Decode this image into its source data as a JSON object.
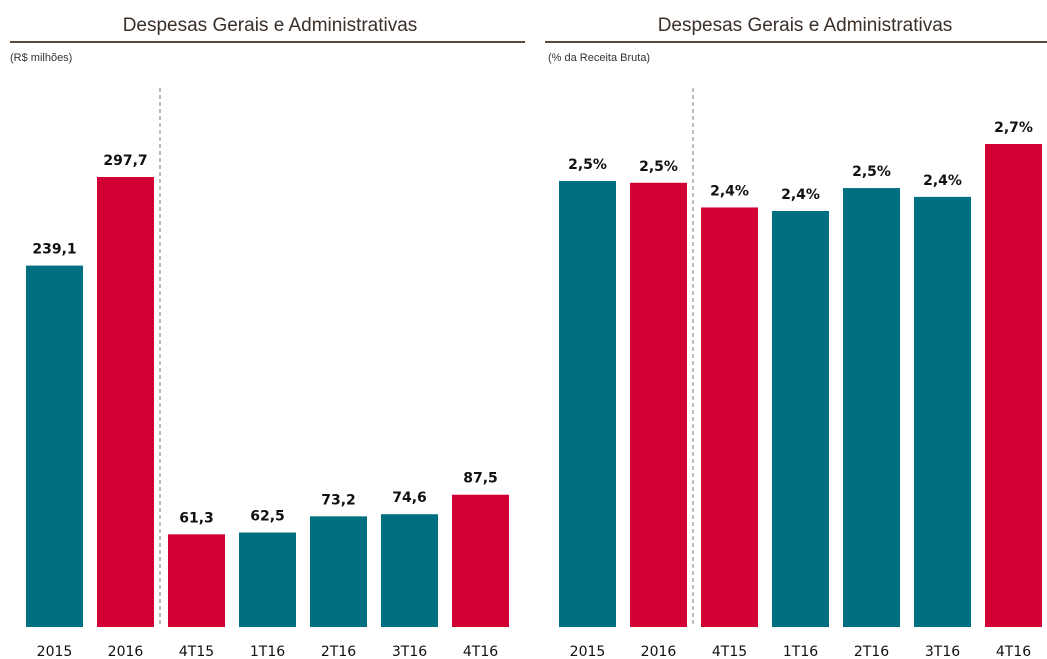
{
  "chart_data": [
    {
      "type": "bar",
      "title": "Despesas Gerais e Administrativas",
      "subtitle": "(R$ milhões)",
      "categories": [
        "2015",
        "2016",
        "4T15",
        "1T16",
        "2T16",
        "3T16",
        "4T16"
      ],
      "values": [
        239.1,
        297.7,
        61.3,
        62.5,
        73.2,
        74.6,
        87.5
      ],
      "value_labels": [
        "239,1",
        "297,7",
        "61,3",
        "62,5",
        "73,2",
        "74,6",
        "87,5"
      ],
      "colors": [
        "#006f80",
        "#d20034",
        "#d20034",
        "#006f80",
        "#006f80",
        "#006f80",
        "#d20034"
      ]
    },
    {
      "type": "bar",
      "title": "Despesas Gerais e Administrativas",
      "subtitle": "(% da Receita Bruta)",
      "categories": [
        "2015",
        "2016",
        "4T15",
        "1T16",
        "2T16",
        "3T16",
        "4T16"
      ],
      "values": [
        2.53,
        2.52,
        2.38,
        2.36,
        2.49,
        2.44,
        2.74
      ],
      "value_labels": [
        "2,5%",
        "2,5%",
        "2,4%",
        "2,4%",
        "2,5%",
        "2,4%",
        "2,7%"
      ],
      "colors": [
        "#006f80",
        "#d20034",
        "#d20034",
        "#006f80",
        "#006f80",
        "#006f80",
        "#d20034"
      ]
    }
  ]
}
